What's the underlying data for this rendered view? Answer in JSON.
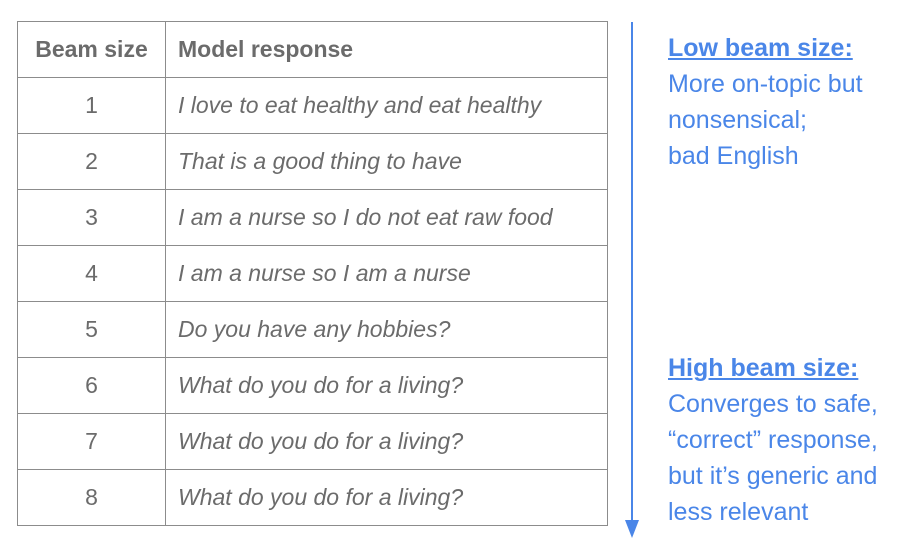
{
  "table": {
    "headers": {
      "size": "Beam size",
      "response": "Model response"
    },
    "rows": [
      {
        "size": "1",
        "response": "I love to eat healthy and eat healthy"
      },
      {
        "size": "2",
        "response": "That is a good thing to have"
      },
      {
        "size": "3",
        "response": "I am a nurse so I do not eat raw food"
      },
      {
        "size": "4",
        "response": "I am a nurse so I am a nurse"
      },
      {
        "size": "5",
        "response": "Do you have any hobbies?"
      },
      {
        "size": "6",
        "response": "What do you do for a living?"
      },
      {
        "size": "7",
        "response": "What do you do for a living?"
      },
      {
        "size": "8",
        "response": "What do you do for a living?"
      }
    ]
  },
  "notes": {
    "low": {
      "heading": "Low beam size:",
      "lines": [
        "More on-topic but",
        "nonsensical;",
        "bad English"
      ]
    },
    "high": {
      "heading": "High beam size:",
      "lines": [
        "Converges to safe,",
        "“correct” response,",
        "but it’s generic and",
        "less relevant"
      ]
    }
  },
  "colors": {
    "accent": "#4a86e8",
    "text": "#6b6b6b",
    "border": "#8c8c8c"
  },
  "icons": {
    "arrow": "down-arrow-icon"
  }
}
